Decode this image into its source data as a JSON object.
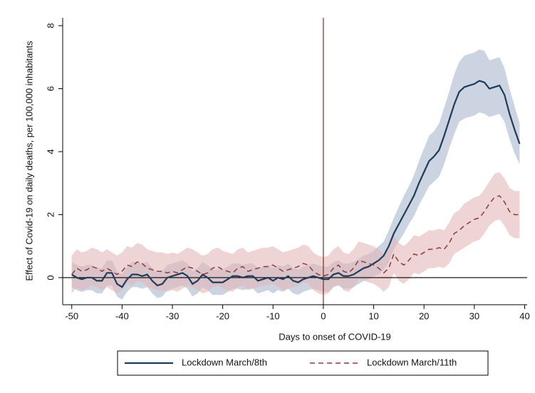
{
  "chart_data": {
    "type": "line",
    "x_label": "Days to onset of COVID-19",
    "y_label": "Effect of Covid-19 on daily deaths, per 100,000 inhabitants",
    "x": [
      -50,
      -49,
      -48,
      -47,
      -46,
      -45,
      -44,
      -43,
      -42,
      -41,
      -40,
      -39,
      -38,
      -37,
      -36,
      -35,
      -34,
      -33,
      -32,
      -31,
      -30,
      -29,
      -28,
      -27,
      -26,
      -25,
      -24,
      -23,
      -22,
      -21,
      -20,
      -19,
      -18,
      -17,
      -16,
      -15,
      -14,
      -13,
      -12,
      -11,
      -10,
      -9,
      -8,
      -7,
      -6,
      -5,
      -4,
      -3,
      -2,
      -1,
      0,
      1,
      2,
      3,
      4,
      5,
      6,
      7,
      8,
      9,
      10,
      11,
      12,
      13,
      14,
      15,
      16,
      17,
      18,
      19,
      20,
      21,
      22,
      23,
      24,
      25,
      26,
      27,
      28,
      29,
      30,
      31,
      32,
      33,
      34,
      35,
      36,
      37,
      38,
      39
    ],
    "series": [
      {
        "name": "Lockdown March/8th",
        "color": "#1f3b5c",
        "band_color": "#a9b8cc",
        "dash": false,
        "values": [
          0.1,
          0.0,
          -0.05,
          0.0,
          0.0,
          -0.1,
          -0.1,
          0.15,
          0.15,
          -0.2,
          -0.3,
          -0.05,
          0.1,
          0.1,
          0.05,
          0.1,
          -0.1,
          -0.25,
          -0.2,
          0.0,
          0.05,
          0.1,
          0.15,
          0.05,
          -0.2,
          -0.1,
          0.1,
          0.0,
          -0.15,
          -0.15,
          -0.15,
          -0.05,
          0.05,
          0.05,
          0.0,
          0.05,
          0.05,
          -0.1,
          -0.05,
          0.0,
          -0.1,
          0.0,
          -0.05,
          0.05,
          -0.1,
          -0.15,
          -0.05,
          0.0,
          0.05,
          0.0,
          -0.05,
          -0.05,
          0.1,
          0.15,
          0.05,
          0.05,
          0.1,
          0.2,
          0.3,
          0.35,
          0.45,
          0.55,
          0.7,
          1.0,
          1.4,
          1.7,
          2.0,
          2.3,
          2.6,
          3.0,
          3.35,
          3.7,
          3.85,
          4.05,
          4.5,
          5.0,
          5.5,
          5.9,
          6.05,
          6.1,
          6.15,
          6.25,
          6.2,
          6.0,
          6.05,
          6.1,
          5.8,
          5.2,
          4.7,
          4.25
        ],
        "errors": [
          0.4,
          0.4,
          0.4,
          0.4,
          0.4,
          0.4,
          0.4,
          0.4,
          0.4,
          0.4,
          0.4,
          0.4,
          0.4,
          0.4,
          0.4,
          0.4,
          0.4,
          0.4,
          0.4,
          0.4,
          0.4,
          0.4,
          0.4,
          0.4,
          0.4,
          0.4,
          0.4,
          0.4,
          0.4,
          0.4,
          0.4,
          0.4,
          0.4,
          0.4,
          0.4,
          0.4,
          0.4,
          0.4,
          0.4,
          0.4,
          0.4,
          0.4,
          0.4,
          0.4,
          0.4,
          0.4,
          0.4,
          0.4,
          0.4,
          0.4,
          0.4,
          0.4,
          0.4,
          0.4,
          0.4,
          0.4,
          0.4,
          0.4,
          0.4,
          0.4,
          0.4,
          0.45,
          0.45,
          0.5,
          0.5,
          0.55,
          0.6,
          0.6,
          0.65,
          0.7,
          0.75,
          0.8,
          0.8,
          0.85,
          0.9,
          0.9,
          0.95,
          0.95,
          1.0,
          1.0,
          1.0,
          1.0,
          1.0,
          0.9,
          0.9,
          0.9,
          0.85,
          0.8,
          0.75,
          0.65
        ]
      },
      {
        "name": "Lockdown March/11th",
        "color": "#8b3b3b",
        "band_color": "#e2b8b8",
        "dash": true,
        "values": [
          0.1,
          0.3,
          0.2,
          0.25,
          0.35,
          0.3,
          0.2,
          0.3,
          0.2,
          0.1,
          0.2,
          0.4,
          0.35,
          0.5,
          0.45,
          0.3,
          0.25,
          0.2,
          0.2,
          0.15,
          0.2,
          0.15,
          0.25,
          0.35,
          0.3,
          0.2,
          0.1,
          0.15,
          0.3,
          0.35,
          0.25,
          0.2,
          0.15,
          0.3,
          0.35,
          0.2,
          0.25,
          0.3,
          0.35,
          0.35,
          0.4,
          0.3,
          0.2,
          0.25,
          0.3,
          0.35,
          0.45,
          0.4,
          0.2,
          0.1,
          0.05,
          0.1,
          0.3,
          0.4,
          0.2,
          0.15,
          0.3,
          0.55,
          0.5,
          0.45,
          0.4,
          0.3,
          0.15,
          0.3,
          0.75,
          0.5,
          0.4,
          0.55,
          0.75,
          0.7,
          0.8,
          0.9,
          0.9,
          0.95,
          0.9,
          1.1,
          1.4,
          1.5,
          1.65,
          1.75,
          1.85,
          1.9,
          2.1,
          2.35,
          2.55,
          2.6,
          2.4,
          2.1,
          2.0,
          2.0
        ],
        "errors": [
          0.6,
          0.6,
          0.6,
          0.6,
          0.6,
          0.6,
          0.6,
          0.6,
          0.6,
          0.6,
          0.6,
          0.6,
          0.6,
          0.6,
          0.6,
          0.6,
          0.6,
          0.6,
          0.6,
          0.6,
          0.6,
          0.6,
          0.6,
          0.6,
          0.6,
          0.6,
          0.6,
          0.6,
          0.6,
          0.6,
          0.6,
          0.6,
          0.6,
          0.6,
          0.6,
          0.6,
          0.6,
          0.6,
          0.6,
          0.6,
          0.6,
          0.6,
          0.6,
          0.6,
          0.6,
          0.6,
          0.6,
          0.6,
          0.6,
          0.6,
          0.6,
          0.6,
          0.6,
          0.6,
          0.6,
          0.6,
          0.6,
          0.6,
          0.6,
          0.6,
          0.6,
          0.6,
          0.6,
          0.6,
          0.6,
          0.6,
          0.6,
          0.6,
          0.6,
          0.6,
          0.6,
          0.6,
          0.6,
          0.6,
          0.6,
          0.65,
          0.65,
          0.65,
          0.7,
          0.7,
          0.7,
          0.7,
          0.7,
          0.7,
          0.75,
          0.75,
          0.75,
          0.75,
          0.75,
          0.75
        ]
      }
    ],
    "xlim": [
      -51.8,
      40.5
    ],
    "ylim": [
      -0.86,
      8.25
    ],
    "xticks": [
      -50,
      -40,
      -30,
      -20,
      -10,
      0,
      10,
      20,
      30,
      40
    ],
    "yticks": [
      0,
      2,
      4,
      6,
      8
    ],
    "xline": 0,
    "xline_color": "#7a2a22",
    "yline": 0,
    "legend": "bottom"
  }
}
